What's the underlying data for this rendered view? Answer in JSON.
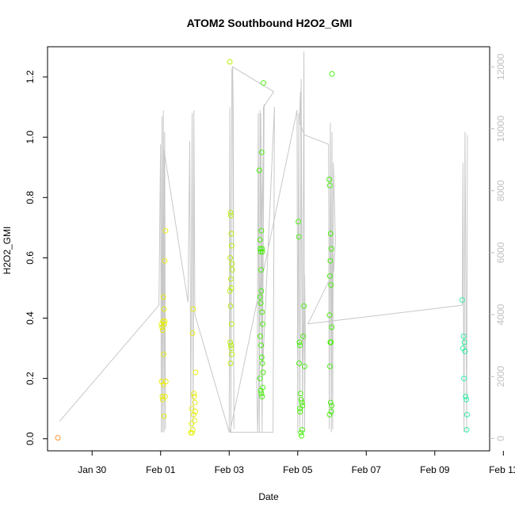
{
  "chart_data": {
    "type": "scatter",
    "title": "ATOM2 Southbound H2O2_GMI",
    "xlabel": "Date",
    "ylabel": "H2O2_GMI",
    "x_tick_labels": [
      "Jan 30",
      "Feb 01",
      "Feb 03",
      "Feb 05",
      "Feb 07",
      "Feb 09",
      "Feb 11"
    ],
    "x_range_days": [
      28.7,
      41.6
    ],
    "x_reference": "Jan",
    "y_ticks": [
      "0.0",
      "0.2",
      "0.4",
      "0.6",
      "0.8",
      "1.0",
      "1.2"
    ],
    "ylim": [
      -0.04,
      1.3
    ],
    "y2_ticks": [
      "0",
      "2000",
      "4000",
      "6000",
      "8000",
      "10000",
      "12000"
    ],
    "y2lim": [
      -400,
      12650
    ],
    "grid": false,
    "colors": {
      "orange": "#ff8c1a",
      "yellow": "#e8f000",
      "yellow_green": "#b4f000",
      "green": "#40f000",
      "cyan_green": "#20f0a0",
      "altitude_line": "#c8c8c8",
      "right_axis": "#bfbfbf"
    },
    "series": [
      {
        "color_key": "orange",
        "points": [
          [
            29.0,
            0.003
          ]
        ]
      },
      {
        "color_key": "yellow",
        "points": [
          [
            32.03,
            0.19
          ],
          [
            32.05,
            0.14
          ],
          [
            32.06,
            0.13
          ],
          [
            32.08,
            0.18
          ],
          [
            32.1,
            0.075
          ],
          [
            32.02,
            0.38
          ],
          [
            32.04,
            0.37
          ],
          [
            32.06,
            0.36
          ],
          [
            32.08,
            0.47
          ],
          [
            32.1,
            0.43
          ],
          [
            32.12,
            0.59
          ],
          [
            32.14,
            0.69
          ],
          [
            32.09,
            0.28
          ],
          [
            32.12,
            0.39
          ],
          [
            32.15,
            0.19
          ],
          [
            32.13,
            0.14
          ],
          [
            32.07,
            0.39
          ],
          [
            32.11,
            0.38
          ],
          [
            32.88,
            0.02
          ],
          [
            32.9,
            0.05
          ],
          [
            32.92,
            0.02
          ],
          [
            32.94,
            0.03
          ],
          [
            32.96,
            0.08
          ],
          [
            32.98,
            0.14
          ],
          [
            33.0,
            0.12
          ],
          [
            33.02,
            0.22
          ],
          [
            32.93,
            0.35
          ],
          [
            32.95,
            0.43
          ],
          [
            32.97,
            0.15
          ],
          [
            32.99,
            0.06
          ],
          [
            32.91,
            0.1
          ],
          [
            33.01,
            0.09
          ]
        ]
      },
      {
        "color_key": "yellow_green",
        "points": [
          [
            34.02,
            1.25
          ],
          [
            34.04,
            0.75
          ],
          [
            34.05,
            0.74
          ],
          [
            34.06,
            0.68
          ],
          [
            34.03,
            0.6
          ],
          [
            34.07,
            0.64
          ],
          [
            34.08,
            0.58
          ],
          [
            34.05,
            0.53
          ],
          [
            34.06,
            0.5
          ],
          [
            34.04,
            0.44
          ],
          [
            34.07,
            0.38
          ],
          [
            34.03,
            0.32
          ],
          [
            34.05,
            0.31
          ],
          [
            34.06,
            0.3
          ],
          [
            34.08,
            0.28
          ],
          [
            34.04,
            0.25
          ],
          [
            34.09,
            0.56
          ],
          [
            34.02,
            0.49
          ]
        ]
      },
      {
        "color_key": "green",
        "points": [
          [
            34.88,
            0.89
          ],
          [
            34.9,
            0.66
          ],
          [
            34.91,
            0.63
          ],
          [
            34.92,
            0.62
          ],
          [
            34.94,
            0.69
          ],
          [
            34.95,
            0.95
          ],
          [
            34.96,
            0.63
          ],
          [
            34.97,
            0.62
          ],
          [
            35.0,
            1.18
          ],
          [
            34.9,
            0.47
          ],
          [
            34.92,
            0.45
          ],
          [
            34.94,
            0.49
          ],
          [
            34.96,
            0.42
          ],
          [
            34.98,
            0.38
          ],
          [
            34.91,
            0.34
          ],
          [
            34.93,
            0.31
          ],
          [
            34.95,
            0.27
          ],
          [
            34.97,
            0.25
          ],
          [
            34.99,
            0.22
          ],
          [
            34.9,
            0.2
          ],
          [
            34.92,
            0.16
          ],
          [
            34.94,
            0.15
          ],
          [
            34.96,
            0.14
          ],
          [
            34.98,
            0.17
          ],
          [
            34.93,
            0.56
          ],
          [
            36.02,
            0.72
          ],
          [
            36.03,
            0.67
          ],
          [
            36.05,
            0.32
          ],
          [
            36.06,
            0.31
          ],
          [
            36.04,
            0.25
          ],
          [
            36.08,
            0.15
          ],
          [
            36.1,
            0.13
          ],
          [
            36.12,
            0.12
          ],
          [
            36.14,
            0.11
          ],
          [
            36.16,
            0.34
          ],
          [
            36.18,
            0.44
          ],
          [
            36.2,
            0.24
          ],
          [
            36.06,
            0.1
          ],
          [
            36.09,
            0.02
          ],
          [
            36.11,
            0.01
          ],
          [
            36.13,
            0.03
          ],
          [
            36.07,
            0.09
          ],
          [
            36.92,
            0.86
          ],
          [
            36.94,
            0.84
          ],
          [
            36.96,
            0.68
          ],
          [
            36.98,
            0.63
          ],
          [
            36.95,
            0.59
          ],
          [
            36.97,
            0.51
          ],
          [
            36.99,
            0.37
          ],
          [
            36.93,
            0.41
          ],
          [
            36.95,
            0.32
          ],
          [
            36.97,
            0.32
          ],
          [
            36.94,
            0.24
          ],
          [
            36.96,
            0.12
          ],
          [
            36.98,
            0.09
          ],
          [
            36.93,
            0.08
          ],
          [
            37.0,
            1.21
          ],
          [
            36.99,
            0.11
          ],
          [
            36.94,
            0.54
          ]
        ]
      },
      {
        "color_key": "cyan_green",
        "points": [
          [
            40.8,
            0.46
          ],
          [
            40.84,
            0.34
          ],
          [
            40.86,
            0.32
          ],
          [
            40.88,
            0.29
          ],
          [
            40.82,
            0.3
          ],
          [
            40.85,
            0.2
          ],
          [
            40.9,
            0.14
          ],
          [
            40.92,
            0.13
          ],
          [
            40.94,
            0.08
          ],
          [
            40.93,
            0.03
          ]
        ]
      }
    ],
    "altitude_line_right_axis": [
      [
        29.05,
        550
      ],
      [
        31.95,
        4300
      ],
      [
        32.0,
        9500
      ],
      [
        32.02,
        200
      ],
      [
        32.04,
        10400
      ],
      [
        32.06,
        200
      ],
      [
        32.08,
        10600
      ],
      [
        32.1,
        200
      ],
      [
        32.12,
        9900
      ],
      [
        32.14,
        300
      ],
      [
        32.1,
        9300
      ],
      [
        32.8,
        4400
      ],
      [
        32.85,
        9600
      ],
      [
        32.88,
        200
      ],
      [
        32.92,
        10500
      ],
      [
        32.95,
        300
      ],
      [
        32.97,
        10600
      ],
      [
        33.0,
        4000
      ],
      [
        34.0,
        200
      ],
      [
        34.02,
        10700
      ],
      [
        34.05,
        200
      ],
      [
        34.08,
        11900
      ],
      [
        34.1,
        12000
      ],
      [
        34.12,
        10600
      ],
      [
        34.14,
        300
      ],
      [
        34.1,
        12000
      ],
      [
        35.3,
        11200
      ],
      [
        35.0,
        10700
      ],
      [
        34.96,
        200
      ],
      [
        34.9,
        10600
      ],
      [
        34.88,
        200
      ],
      [
        34.85,
        10500
      ],
      [
        34.82,
        2000
      ],
      [
        34.8,
        1900
      ],
      [
        34.83,
        200
      ],
      [
        35.02,
        10800
      ],
      [
        34.96,
        300
      ],
      [
        34.92,
        10500
      ],
      [
        34.98,
        2300
      ],
      [
        35.32,
        10700
      ],
      [
        35.28,
        200
      ],
      [
        34.02,
        200
      ],
      [
        35.98,
        10600
      ],
      [
        36.0,
        200
      ],
      [
        36.03,
        10500
      ],
      [
        36.06,
        200
      ],
      [
        36.1,
        11600
      ],
      [
        36.14,
        200
      ],
      [
        36.18,
        12500
      ],
      [
        36.2,
        200
      ],
      [
        36.22,
        3700
      ],
      [
        36.2,
        5300
      ],
      [
        36.18,
        3800
      ],
      [
        36.14,
        1900
      ],
      [
        36.08,
        11200
      ],
      [
        36.05,
        10200
      ],
      [
        36.2,
        9800
      ],
      [
        36.9,
        9500
      ],
      [
        36.92,
        300
      ],
      [
        36.95,
        10200
      ],
      [
        36.98,
        200
      ],
      [
        37.0,
        9900
      ],
      [
        37.02,
        300
      ],
      [
        37.04,
        8900
      ],
      [
        37.1,
        6400
      ],
      [
        37.05,
        5400
      ],
      [
        36.3,
        3700
      ],
      [
        40.8,
        4300
      ],
      [
        40.82,
        8900
      ],
      [
        40.85,
        200
      ],
      [
        40.88,
        9900
      ],
      [
        40.9,
        6400
      ],
      [
        40.93,
        200
      ],
      [
        40.95,
        9800
      ]
    ]
  }
}
